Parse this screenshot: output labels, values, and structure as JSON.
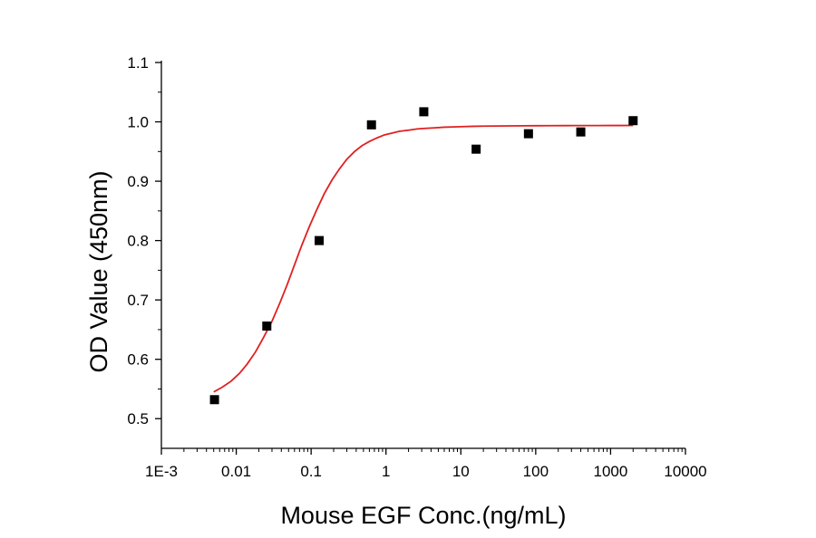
{
  "chart_data": {
    "type": "scatter",
    "title": "",
    "xlabel": "Mouse EGF Conc.(ng/mL)",
    "ylabel": "OD Value (450nm)",
    "x_scale": "log",
    "xlim": [
      0.001,
      10000
    ],
    "ylim": [
      0.45,
      1.1
    ],
    "x_tick_values": [
      0.001,
      0.01,
      0.1,
      1,
      10,
      100,
      1000,
      10000
    ],
    "x_tick_labels": [
      "1E-3",
      "0.01",
      "0.1",
      "1",
      "10",
      "100",
      "1000",
      "10000"
    ],
    "y_tick_values": [
      0.5,
      0.6,
      0.7,
      0.8,
      0.9,
      1.0,
      1.1
    ],
    "y_tick_labels": [
      "0.5",
      "0.6",
      "0.7",
      "0.8",
      "0.9",
      "1.0",
      "1.1"
    ],
    "grid": false,
    "legend": false,
    "series": [
      {
        "kind": "points",
        "marker": "square",
        "color": "#000000",
        "x": [
          0.00512,
          0.0256,
          0.128,
          0.64,
          3.2,
          16,
          80,
          400,
          2000
        ],
        "y": [
          0.532,
          0.656,
          0.8,
          0.995,
          1.017,
          0.954,
          0.98,
          0.983,
          1.002
        ]
      },
      {
        "kind": "fit",
        "color": "#e02020",
        "x": [
          0.005,
          0.0065,
          0.0085,
          0.011,
          0.014,
          0.018,
          0.023,
          0.03,
          0.038,
          0.048,
          0.06,
          0.075,
          0.095,
          0.12,
          0.15,
          0.19,
          0.24,
          0.3,
          0.38,
          0.48,
          0.6,
          0.76,
          0.95,
          1.2,
          1.5,
          2,
          2.6,
          3.3,
          4.5,
          6,
          8,
          11,
          15,
          20,
          30,
          45,
          70,
          100,
          150,
          250,
          400,
          700,
          1000,
          1500,
          2000
        ],
        "y": [
          0.545,
          0.553,
          0.563,
          0.576,
          0.592,
          0.612,
          0.636,
          0.664,
          0.694,
          0.726,
          0.759,
          0.792,
          0.824,
          0.853,
          0.879,
          0.902,
          0.921,
          0.937,
          0.95,
          0.96,
          0.967,
          0.973,
          0.978,
          0.981,
          0.984,
          0.986,
          0.988,
          0.989,
          0.99,
          0.991,
          0.9915,
          0.992,
          0.9925,
          0.9928,
          0.993,
          0.9932,
          0.9934,
          0.9935,
          0.9936,
          0.9937,
          0.9938,
          0.9938,
          0.9939,
          0.9939,
          0.994
        ]
      }
    ]
  }
}
